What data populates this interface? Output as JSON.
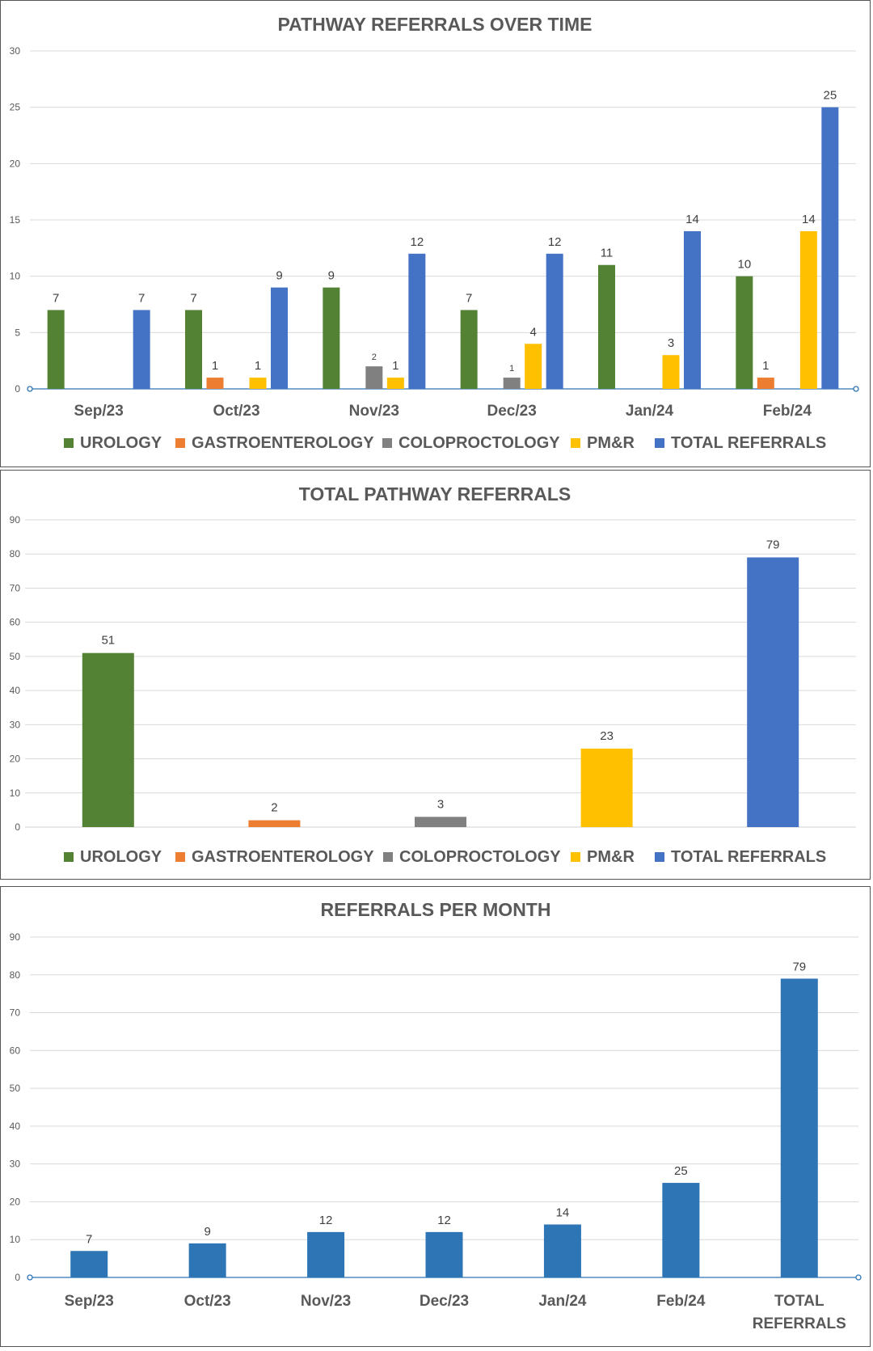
{
  "chart_data": [
    {
      "type": "bar",
      "title": "PATHWAY REFERRALS OVER TIME",
      "categories": [
        "Sep/23",
        "Oct/23",
        "Nov/23",
        "Dec/23",
        "Jan/24",
        "Feb/24"
      ],
      "series": [
        {
          "name": "UROLOGY",
          "color": "#548235",
          "values": [
            7,
            7,
            9,
            7,
            11,
            10
          ]
        },
        {
          "name": "GASTROENTEROLOGY",
          "color": "#ED7D31",
          "values": [
            null,
            1,
            null,
            null,
            null,
            1
          ]
        },
        {
          "name": "COLOPROCTOLOGY",
          "color": "#808080",
          "values": [
            null,
            null,
            2,
            1,
            null,
            null
          ]
        },
        {
          "name": "PM&R",
          "color": "#FFC000",
          "values": [
            null,
            1,
            1,
            4,
            3,
            14
          ]
        },
        {
          "name": "TOTAL REFERRALS",
          "color": "#4472C4",
          "values": [
            7,
            9,
            12,
            12,
            14,
            25
          ]
        }
      ],
      "ylim": [
        0,
        30
      ],
      "yticks": [
        0,
        5,
        10,
        15,
        20,
        25,
        30
      ],
      "grid": true,
      "legend": "bottom"
    },
    {
      "type": "bar",
      "title": "TOTAL PATHWAY REFERRALS",
      "categories": [
        "UROLOGY",
        "GASTROENTEROLOGY",
        "COLOPROCTOLOGY",
        "PM&R",
        "TOTAL REFERRALS"
      ],
      "values": [
        51,
        2,
        3,
        23,
        79
      ],
      "colors": [
        "#548235",
        "#ED7D31",
        "#808080",
        "#FFC000",
        "#4472C4"
      ],
      "ylim": [
        0,
        90
      ],
      "yticks": [
        0,
        10,
        20,
        30,
        40,
        50,
        60,
        70,
        80,
        90
      ],
      "grid": true,
      "legend": "bottom"
    },
    {
      "type": "bar",
      "title": "REFERRALS PER MONTH",
      "categories": [
        "Sep/23",
        "Oct/23",
        "Nov/23",
        "Dec/23",
        "Jan/24",
        "Feb/24",
        "TOTAL REFERRALS"
      ],
      "values": [
        7,
        9,
        12,
        12,
        14,
        25,
        79
      ],
      "color": "#2E75B6",
      "ylim": [
        0,
        90
      ],
      "yticks": [
        0,
        10,
        20,
        30,
        40,
        50,
        60,
        70,
        80,
        90
      ],
      "grid": true,
      "legend": "none"
    }
  ]
}
